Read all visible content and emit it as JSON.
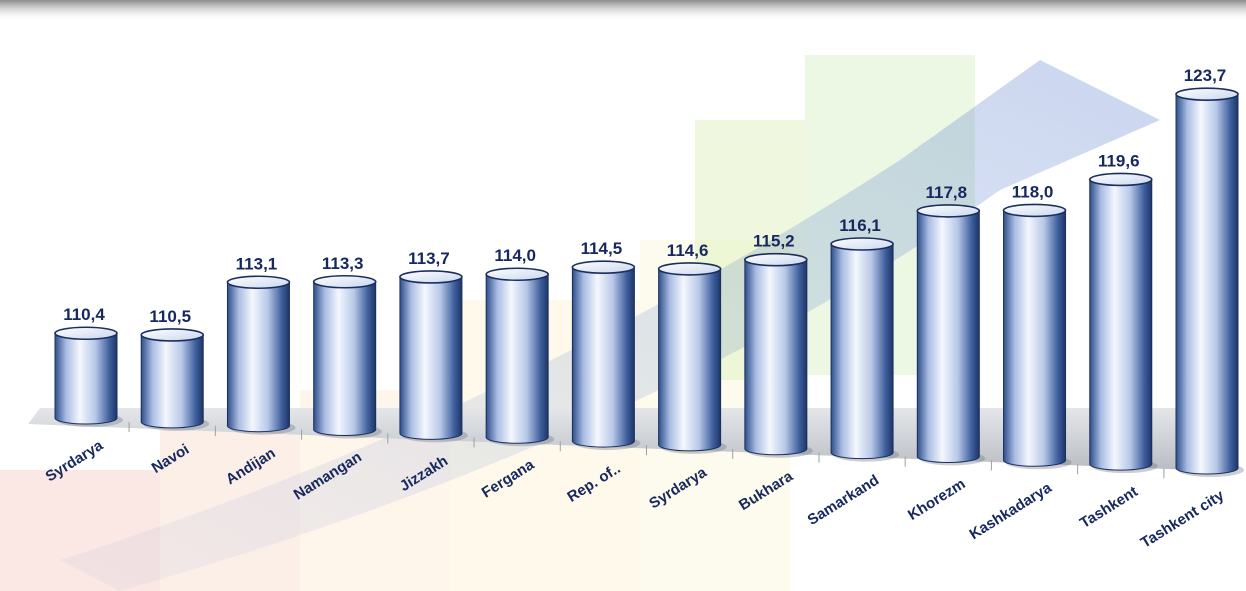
{
  "chart_data": {
    "type": "bar",
    "categories": [
      "Syrdarya",
      "Navoi",
      "Andijan",
      "Namangan",
      "Jizzakh",
      "Fergana",
      "Rep. of..",
      "Syrdarya",
      "Bukhara",
      "Samarkand",
      "Khorezm",
      "Kashkadarya",
      "Tashkent",
      "Tashkent city"
    ],
    "values": [
      110.4,
      110.5,
      113.1,
      113.3,
      113.7,
      114.0,
      114.5,
      114.6,
      115.2,
      116.1,
      117.8,
      118.0,
      119.6,
      123.7
    ],
    "value_labels": [
      "110,4",
      "110,5",
      "113,1",
      "113,3",
      "113,7",
      "114,0",
      "114,5",
      "114,6",
      "115,2",
      "116,1",
      "117,8",
      "118,0",
      "119,6",
      "123,7"
    ],
    "title": "",
    "xlabel": "",
    "ylabel": "",
    "ylim": [
      106.5,
      124.4
    ],
    "grid": false,
    "legend": "none",
    "style": "3d-cylinder",
    "colors": {
      "bar_light": "#f4f7fd",
      "bar_mid": "#a9bce3",
      "bar_dark": "#2e4f8a",
      "bar_top": "#dfe7f6",
      "label": "#16285e",
      "floor": "#cfd3d8"
    }
  }
}
